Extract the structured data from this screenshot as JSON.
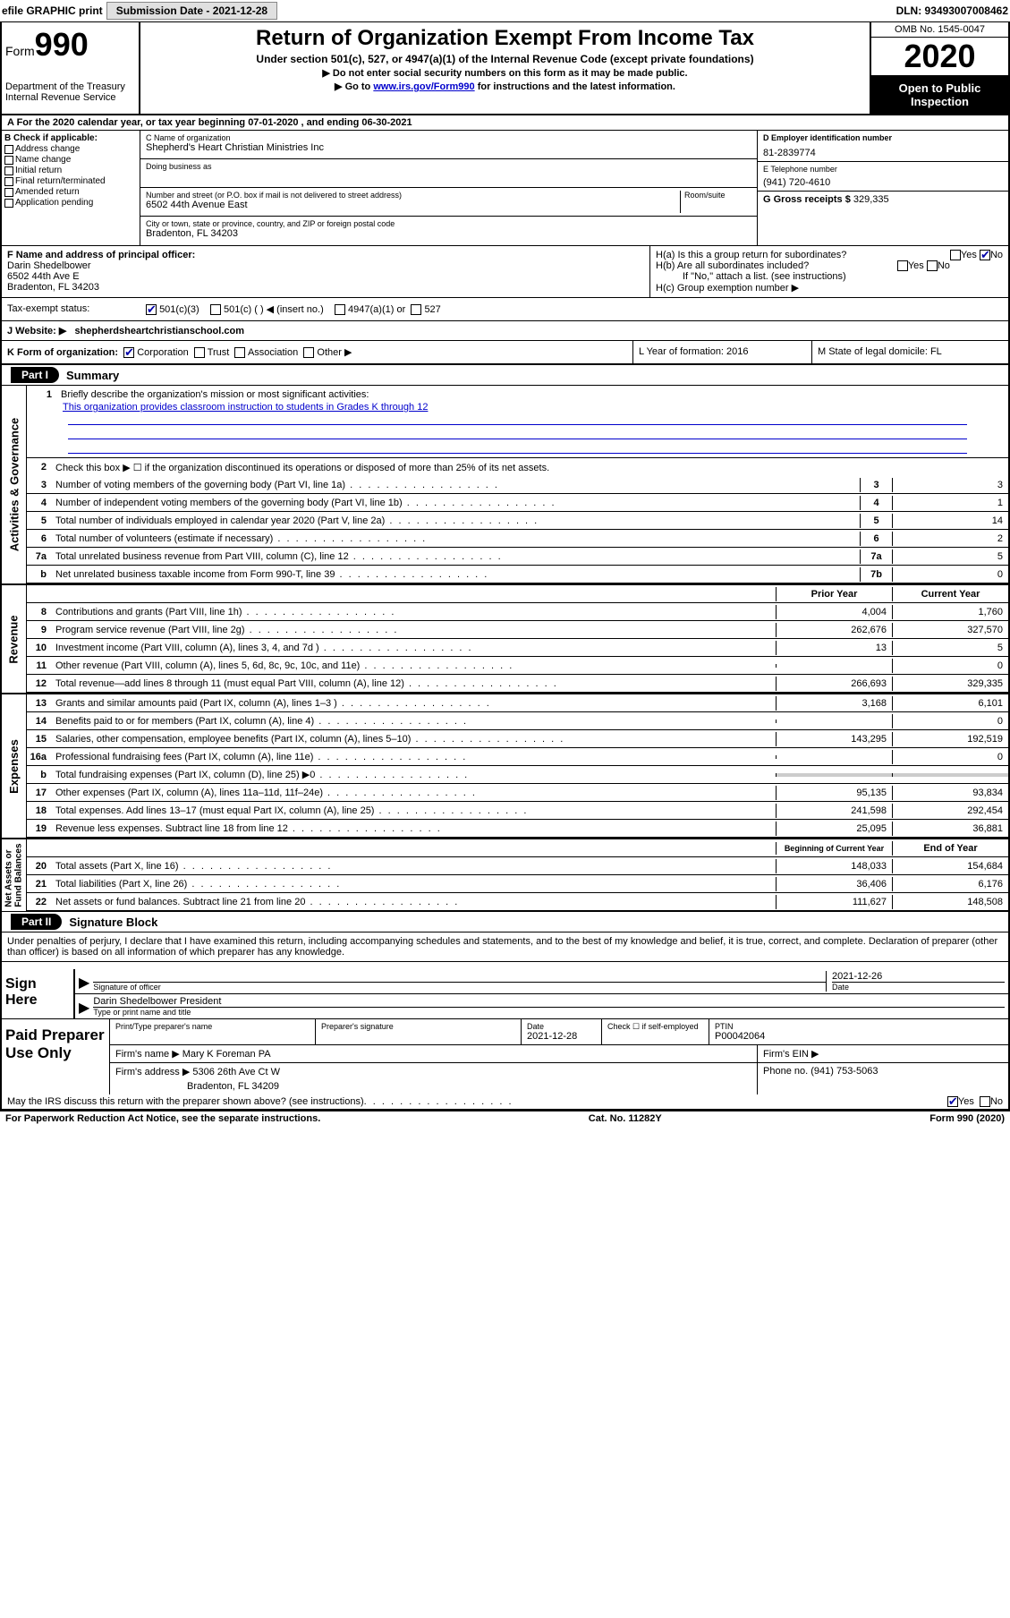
{
  "topbar": {
    "efile": "efile GRAPHIC print",
    "submission_label": "Submission Date - 2021-12-28",
    "dln": "DLN: 93493007008462"
  },
  "header": {
    "form_word": "Form",
    "form_num": "990",
    "dept": "Department of the Treasury\nInternal Revenue Service",
    "title": "Return of Organization Exempt From Income Tax",
    "sub": "Under section 501(c), 527, or 4947(a)(1) of the Internal Revenue Code (except private foundations)",
    "line1": "▶ Do not enter social security numbers on this form as it may be made public.",
    "line2_pre": "▶ Go to ",
    "line2_link": "www.irs.gov/Form990",
    "line2_post": " for instructions and the latest information.",
    "omb": "OMB No. 1545-0047",
    "year": "2020",
    "inspect": "Open to Public Inspection"
  },
  "row_a": "A   For the 2020 calendar year, or tax year beginning 07-01-2020    , and ending 06-30-2021",
  "box_b": {
    "hdr": "B Check if applicable:",
    "items": [
      "Address change",
      "Name change",
      "Initial return",
      "Final return/terminated",
      "Amended return",
      "Application pending"
    ]
  },
  "box_c": {
    "name_label": "C Name of organization",
    "name": "Shepherd's Heart Christian Ministries Inc",
    "dba_label": "Doing business as",
    "street_label": "Number and street (or P.O. box if mail is not delivered to street address)",
    "room_label": "Room/suite",
    "street": "6502 44th Avenue East",
    "city_label": "City or town, state or province, country, and ZIP or foreign postal code",
    "city": "Bradenton, FL  34203"
  },
  "box_d": {
    "ein_label": "D Employer identification number",
    "ein": "81-2839774",
    "tel_label": "E Telephone number",
    "tel": "(941) 720-4610",
    "gross_label": "G Gross receipts $",
    "gross": "329,335"
  },
  "box_f": {
    "label": "F Name and address of principal officer:",
    "name": "Darin Shedelbower",
    "addr1": "6502 44th Ave E",
    "addr2": "Bradenton, FL  34203"
  },
  "box_h": {
    "a": "H(a)  Is this a group return for subordinates?",
    "b": "H(b)  Are all subordinates included?",
    "note": "If \"No,\" attach a list. (see instructions)",
    "c": "H(c)  Group exemption number ▶"
  },
  "tax": {
    "label": "Tax-exempt status:",
    "opts": [
      "501(c)(3)",
      "501(c) (  ) ◀ (insert no.)",
      "4947(a)(1) or",
      "527"
    ]
  },
  "website": {
    "label": "J  Website: ▶",
    "value": "shepherdsheartchristianschool.com"
  },
  "k_row": {
    "k": "K Form of organization:",
    "opts": [
      "Corporation",
      "Trust",
      "Association",
      "Other ▶"
    ],
    "l": "L Year of formation: 2016",
    "m": "M State of legal domicile: FL"
  },
  "part1": {
    "label": "Part I",
    "title": "Summary"
  },
  "summary": {
    "q1": "Briefly describe the organization's mission or most significant activities:",
    "mission": "This organization provides classroom instruction to students in Grades K through 12",
    "q2": "Check this box ▶ ☐  if the organization discontinued its operations or disposed of more than 25% of its net assets.",
    "lines": [
      {
        "n": "3",
        "d": "Number of voting members of the governing body (Part VI, line 1a)",
        "box": "3",
        "v": "3"
      },
      {
        "n": "4",
        "d": "Number of independent voting members of the governing body (Part VI, line 1b)",
        "box": "4",
        "v": "1"
      },
      {
        "n": "5",
        "d": "Total number of individuals employed in calendar year 2020 (Part V, line 2a)",
        "box": "5",
        "v": "14"
      },
      {
        "n": "6",
        "d": "Total number of volunteers (estimate if necessary)",
        "box": "6",
        "v": "2"
      },
      {
        "n": "7a",
        "d": "Total unrelated business revenue from Part VIII, column (C), line 12",
        "box": "7a",
        "v": "5"
      },
      {
        "n": "b",
        "d": "Net unrelated business taxable income from Form 990-T, line 39",
        "box": "7b",
        "v": "0"
      }
    ]
  },
  "revenue": {
    "hdr_prior": "Prior Year",
    "hdr_current": "Current Year",
    "lines": [
      {
        "n": "8",
        "d": "Contributions and grants (Part VIII, line 1h)",
        "p": "4,004",
        "c": "1,760"
      },
      {
        "n": "9",
        "d": "Program service revenue (Part VIII, line 2g)",
        "p": "262,676",
        "c": "327,570"
      },
      {
        "n": "10",
        "d": "Investment income (Part VIII, column (A), lines 3, 4, and 7d )",
        "p": "13",
        "c": "5"
      },
      {
        "n": "11",
        "d": "Other revenue (Part VIII, column (A), lines 5, 6d, 8c, 9c, 10c, and 11e)",
        "p": "",
        "c": "0"
      },
      {
        "n": "12",
        "d": "Total revenue—add lines 8 through 11 (must equal Part VIII, column (A), line 12)",
        "p": "266,693",
        "c": "329,335"
      }
    ]
  },
  "expenses": {
    "lines": [
      {
        "n": "13",
        "d": "Grants and similar amounts paid (Part IX, column (A), lines 1–3 )",
        "p": "3,168",
        "c": "6,101"
      },
      {
        "n": "14",
        "d": "Benefits paid to or for members (Part IX, column (A), line 4)",
        "p": "",
        "c": "0"
      },
      {
        "n": "15",
        "d": "Salaries, other compensation, employee benefits (Part IX, column (A), lines 5–10)",
        "p": "143,295",
        "c": "192,519"
      },
      {
        "n": "16a",
        "d": "Professional fundraising fees (Part IX, column (A), line 11e)",
        "p": "",
        "c": "0"
      },
      {
        "n": "b",
        "d": "Total fundraising expenses (Part IX, column (D), line 25) ▶0",
        "p": "shaded",
        "c": "shaded"
      },
      {
        "n": "17",
        "d": "Other expenses (Part IX, column (A), lines 11a–11d, 11f–24e)",
        "p": "95,135",
        "c": "93,834"
      },
      {
        "n": "18",
        "d": "Total expenses. Add lines 13–17 (must equal Part IX, column (A), line 25)",
        "p": "241,598",
        "c": "292,454"
      },
      {
        "n": "19",
        "d": "Revenue less expenses. Subtract line 18 from line 12",
        "p": "25,095",
        "c": "36,881"
      }
    ]
  },
  "netassets": {
    "hdr_begin": "Beginning of Current Year",
    "hdr_end": "End of Year",
    "lines": [
      {
        "n": "20",
        "d": "Total assets (Part X, line 16)",
        "p": "148,033",
        "c": "154,684"
      },
      {
        "n": "21",
        "d": "Total liabilities (Part X, line 26)",
        "p": "36,406",
        "c": "6,176"
      },
      {
        "n": "22",
        "d": "Net assets or fund balances. Subtract line 21 from line 20",
        "p": "111,627",
        "c": "148,508"
      }
    ]
  },
  "part2": {
    "label": "Part II",
    "title": "Signature Block"
  },
  "sig": {
    "penalties": "Under penalties of perjury, I declare that I have examined this return, including accompanying schedules and statements, and to the best of my knowledge and belief, it is true, correct, and complete. Declaration of preparer (other than officer) is based on all information of which preparer has any knowledge.",
    "sign_here": "Sign Here",
    "sig_officer": "Signature of officer",
    "date": "2021-12-26",
    "date_label": "Date",
    "typed": "Darin Shedelbower President",
    "typed_label": "Type or print name and title"
  },
  "prep": {
    "label": "Paid Preparer Use Only",
    "h1": "Print/Type preparer's name",
    "h2": "Preparer's signature",
    "h3": "Date",
    "date": "2021-12-28",
    "h4": "Check ☐ if self-employed",
    "h5": "PTIN",
    "ptin": "P00042064",
    "firm_name_label": "Firm's name    ▶",
    "firm_name": "Mary K Foreman PA",
    "firm_ein_label": "Firm's EIN ▶",
    "firm_addr_label": "Firm's address ▶",
    "firm_addr1": "5306 26th Ave Ct W",
    "firm_addr2": "Bradenton, FL  34209",
    "phone_label": "Phone no.",
    "phone": "(941) 753-5063"
  },
  "footer": {
    "discuss": "May the IRS discuss this return with the preparer shown above? (see instructions)",
    "paperwork": "For Paperwork Reduction Act Notice, see the separate instructions.",
    "cat": "Cat. No. 11282Y",
    "form": "Form 990 (2020)"
  }
}
